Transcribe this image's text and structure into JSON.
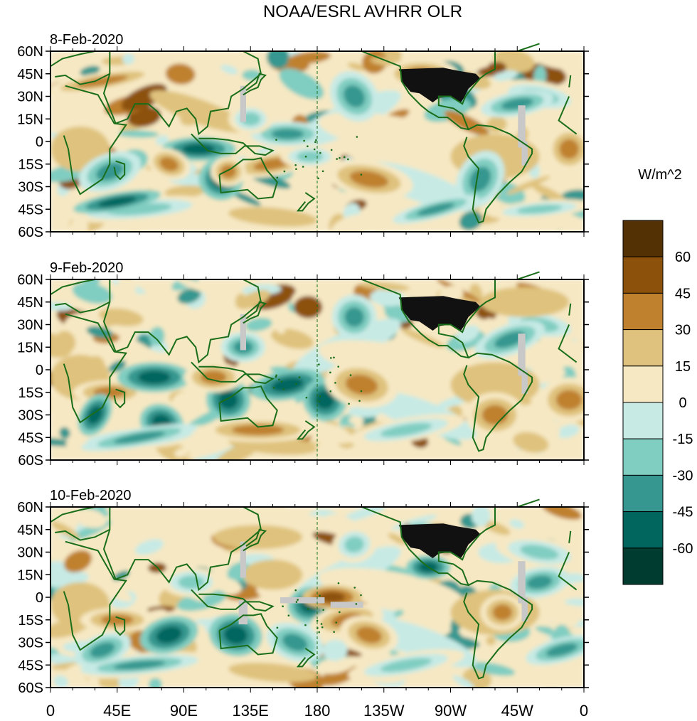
{
  "title": "NOAA/ESRL AVHRR OLR",
  "units_label": "W/m^2",
  "panels": [
    {
      "date": "8-Feb-2020"
    },
    {
      "date": "9-Feb-2020"
    },
    {
      "date": "10-Feb-2020"
    }
  ],
  "lat_labels": [
    "60N",
    "45N",
    "30N",
    "15N",
    "0",
    "15S",
    "30S",
    "45S",
    "60S"
  ],
  "lon_labels": [
    "0",
    "45E",
    "90E",
    "135E",
    "180",
    "135W",
    "90W",
    "45W",
    "0"
  ],
  "colorbar": {
    "labels": [
      "60",
      "45",
      "30",
      "15",
      "0",
      "-15",
      "-30",
      "-45",
      "-60"
    ],
    "colors": [
      "#543005",
      "#8c510a",
      "#bf812d",
      "#dfc27d",
      "#f6e8c3",
      "#c7eae5",
      "#80cdc1",
      "#35978f",
      "#01665e",
      "#003c30"
    ]
  },
  "colors": {
    "coastline": "#1a6e1a",
    "missing": "#c8c8c8",
    "land_us": "#111111"
  }
}
